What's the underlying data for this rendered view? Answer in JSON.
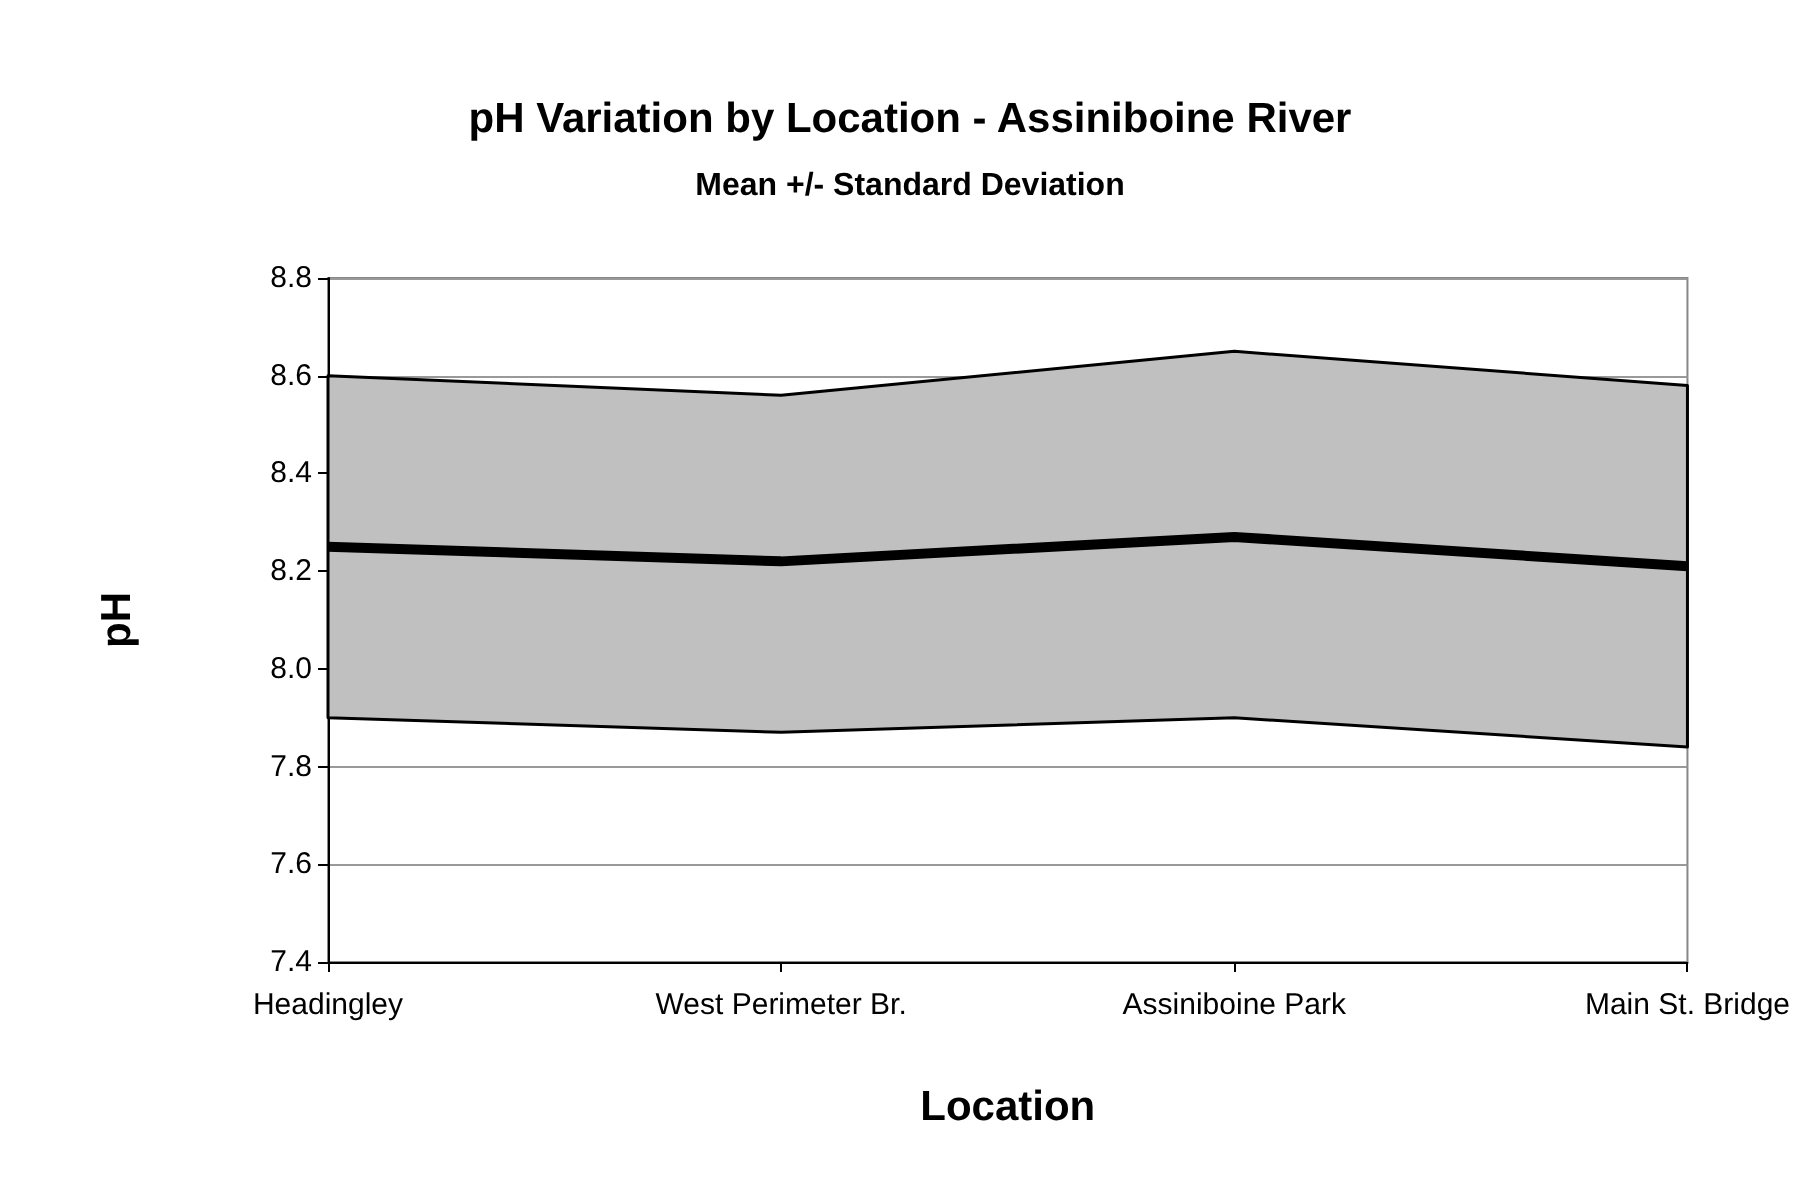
{
  "chart_data": {
    "type": "line",
    "title": "pH Variation by Location - Assiniboine River",
    "subtitle": "Mean +/- Standard Deviation",
    "xlabel": "Location",
    "ylabel": "pH",
    "categories": [
      "Headingley",
      "West Perimeter Br.",
      "Assiniboine Park",
      "Main St. Bridge"
    ],
    "series": [
      {
        "color": "#000000",
        "values": [
          8.25,
          8.22,
          8.27,
          8.21
        ],
        "lower": [
          7.9,
          7.87,
          7.9,
          7.84
        ],
        "upper": [
          8.6,
          8.56,
          8.65,
          8.58
        ]
      }
    ],
    "ylim": [
      7.4,
      8.8
    ],
    "yticks": [
      7.4,
      7.6,
      7.8,
      {
        "value": 8,
        "label": "8.0"
      },
      8.2,
      8.4,
      8.6,
      8.8
    ],
    "grid": "y",
    "marker": "none",
    "line_style": "solid"
  }
}
